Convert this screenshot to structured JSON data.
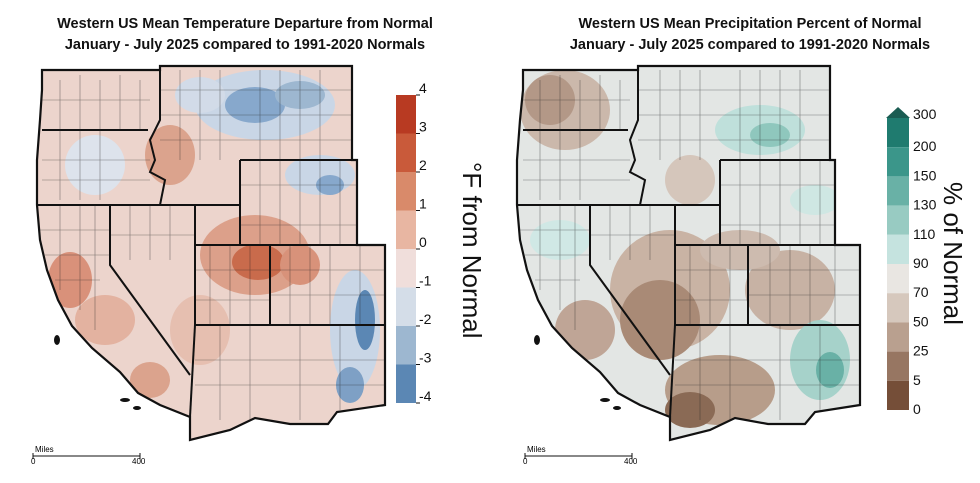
{
  "temperature_map": {
    "title_line1": "Western US Mean Temperature Departure from Normal",
    "title_line2": "January - July 2025 compared to 1991-2020 Normals",
    "legend_unit": "°F from Normal",
    "legend_ticks": [
      "4",
      "3",
      "2",
      "1",
      "0",
      "-1",
      "-2",
      "-3",
      "-4"
    ],
    "legend_colors": [
      "#b83a22",
      "#c95a3a",
      "#d98a6a",
      "#e8b6a2",
      "#f0dedb",
      "#d4dde8",
      "#9db7d0",
      "#5b87b4",
      "#2d5f96"
    ],
    "scale_label": "Miles",
    "scale_ticks": [
      "0",
      "400"
    ]
  },
  "precipitation_map": {
    "title_line1": "Western US Mean Precipitation Percent of Normal",
    "title_line2": "January - July 2025 compared to 1991-2020 Normals",
    "legend_unit": "% of Normal",
    "legend_ticks": [
      "300",
      "200",
      "150",
      "130",
      "110",
      "90",
      "70",
      "50",
      "25",
      "5",
      "0"
    ],
    "legend_colors": [
      "#1f7b6f",
      "#3b968a",
      "#69b1a6",
      "#98cbc2",
      "#c5e3df",
      "#e9e6e2",
      "#d6c8bd",
      "#b9a08f",
      "#977662",
      "#754e38",
      "#552f1a"
    ],
    "scale_label": "Miles",
    "scale_ticks": [
      "0",
      "400"
    ]
  }
}
